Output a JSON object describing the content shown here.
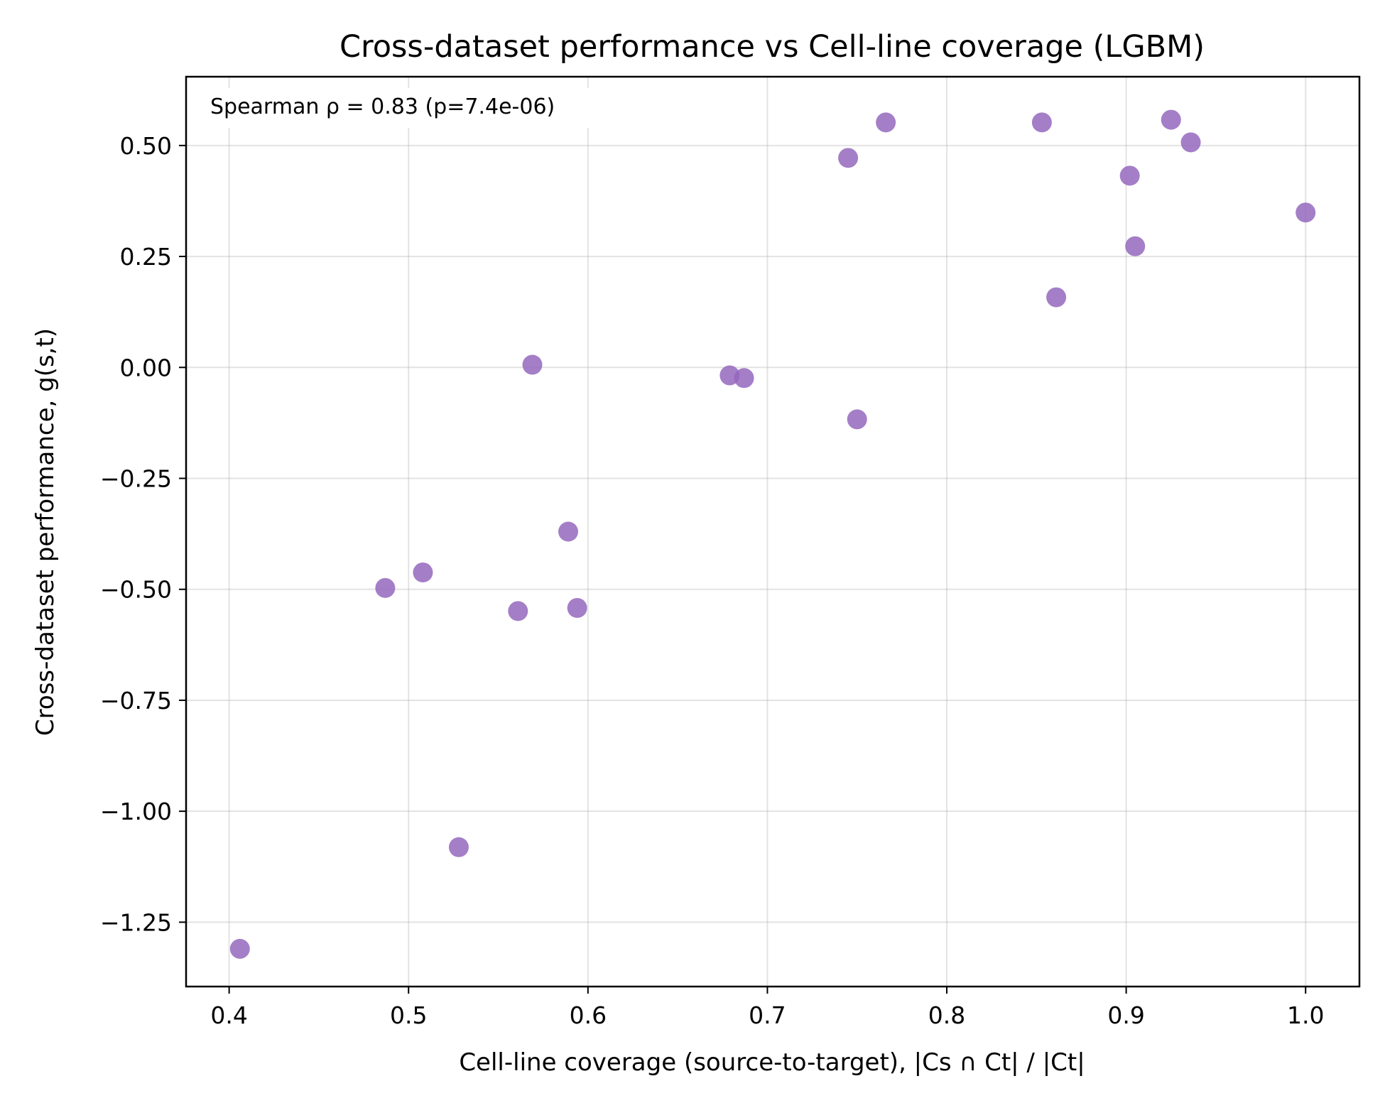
{
  "chart_data": {
    "type": "scatter",
    "title": "Cross-dataset performance vs Cell-line coverage (LGBM)",
    "xlabel": "Cell-line coverage (source-to-target), |Cs ∩ Ct| / |Ct|",
    "ylabel": "Cross-dataset performance, g(s,t)",
    "annotation": "Spearman ρ = 0.83 (p=7.4e-06)",
    "xlim": [
      0.376,
      1.03
    ],
    "ylim": [
      -1.395,
      0.655
    ],
    "x_ticks": [
      0.4,
      0.5,
      0.6,
      0.7,
      0.8,
      0.9,
      1.0
    ],
    "x_tick_labels": [
      "0.4",
      "0.5",
      "0.6",
      "0.7",
      "0.8",
      "0.9",
      "1.0"
    ],
    "y_ticks": [
      -1.25,
      -1.0,
      -0.75,
      -0.5,
      -0.25,
      0.0,
      0.25,
      0.5
    ],
    "y_tick_labels": [
      "−1.25",
      "−1.00",
      "−0.75",
      "−0.50",
      "−0.25",
      "0.00",
      "0.25",
      "0.50"
    ],
    "grid": true,
    "marker_color": "#9467bd",
    "marker_alpha": 0.85,
    "series": [
      {
        "points": [
          {
            "x": 0.406,
            "y": -1.31
          },
          {
            "x": 0.487,
            "y": -0.497
          },
          {
            "x": 0.508,
            "y": -0.462
          },
          {
            "x": 0.528,
            "y": -1.081
          },
          {
            "x": 0.561,
            "y": -0.549
          },
          {
            "x": 0.569,
            "y": 0.006
          },
          {
            "x": 0.589,
            "y": -0.37
          },
          {
            "x": 0.594,
            "y": -0.542
          },
          {
            "x": 0.679,
            "y": -0.018
          },
          {
            "x": 0.687,
            "y": -0.024
          },
          {
            "x": 0.745,
            "y": 0.472
          },
          {
            "x": 0.75,
            "y": -0.117
          },
          {
            "x": 0.766,
            "y": 0.552
          },
          {
            "x": 0.853,
            "y": 0.552
          },
          {
            "x": 0.861,
            "y": 0.158
          },
          {
            "x": 0.902,
            "y": 0.432
          },
          {
            "x": 0.905,
            "y": 0.273
          },
          {
            "x": 0.925,
            "y": 0.558
          },
          {
            "x": 0.936,
            "y": 0.507
          },
          {
            "x": 1.0,
            "y": 0.349
          }
        ]
      }
    ]
  }
}
